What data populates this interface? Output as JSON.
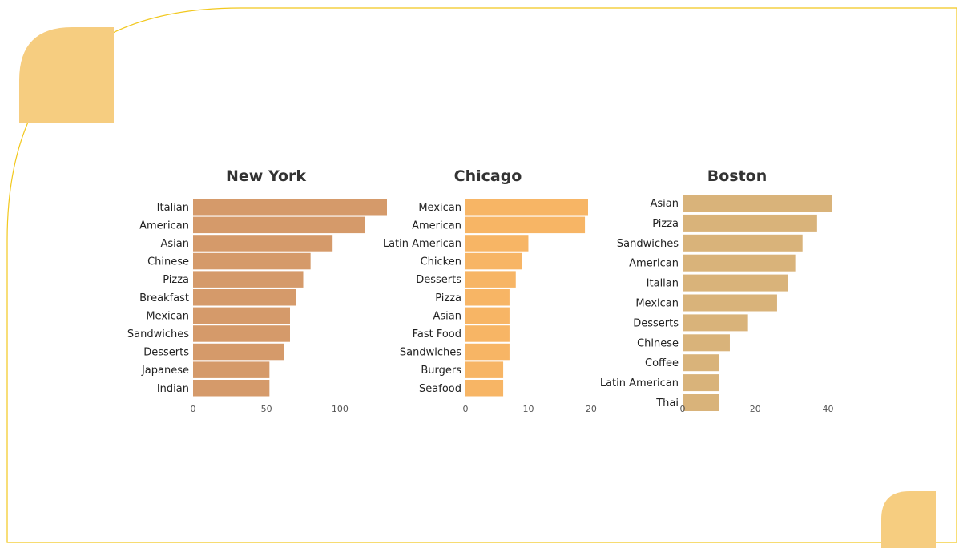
{
  "colors": {
    "border": "#f2c81e",
    "accent_shape": "#f6cd80",
    "new_york_bar": "#d59a6a",
    "chicago_bar": "#f7b565",
    "boston_bar": "#d9b37a"
  },
  "chart_data": [
    {
      "type": "bar",
      "orientation": "horizontal",
      "title": "New York",
      "categories": [
        "Italian",
        "American",
        "Asian",
        "Chinese",
        "Pizza",
        "Breakfast",
        "Mexican",
        "Sandwiches",
        "Desserts",
        "Japanese",
        "Indian"
      ],
      "values": [
        132,
        117,
        95,
        80,
        75,
        70,
        66,
        66,
        62,
        52,
        52
      ],
      "xticks": [
        0,
        50,
        100
      ],
      "xlim": [
        0,
        132
      ],
      "grid": false,
      "color": "#d59a6a"
    },
    {
      "type": "bar",
      "orientation": "horizontal",
      "title": "Chicago",
      "categories": [
        "Mexican",
        "American",
        "Latin American",
        "Chicken",
        "Desserts",
        "Pizza",
        "Asian",
        "Fast Food",
        "Sandwiches",
        "Burgers",
        "Seafood"
      ],
      "values": [
        19.5,
        19,
        10,
        9,
        8,
        7,
        7,
        7,
        7,
        6,
        6
      ],
      "xticks": [
        0,
        10,
        20
      ],
      "xlim": [
        0,
        19.5
      ],
      "grid": false,
      "color": "#f7b565"
    },
    {
      "type": "bar",
      "orientation": "horizontal",
      "title": "Boston",
      "categories": [
        "Asian",
        "Pizza",
        "Sandwiches",
        "American",
        "Italian",
        "Mexican",
        "Desserts",
        "Chinese",
        "Coffee",
        "Latin American",
        "Thai"
      ],
      "values": [
        41,
        37,
        33,
        31,
        29,
        26,
        18,
        13,
        10,
        10,
        10
      ],
      "xticks": [
        0,
        20,
        40
      ],
      "xlim": [
        0,
        41
      ],
      "grid": false,
      "color": "#d9b37a"
    }
  ]
}
